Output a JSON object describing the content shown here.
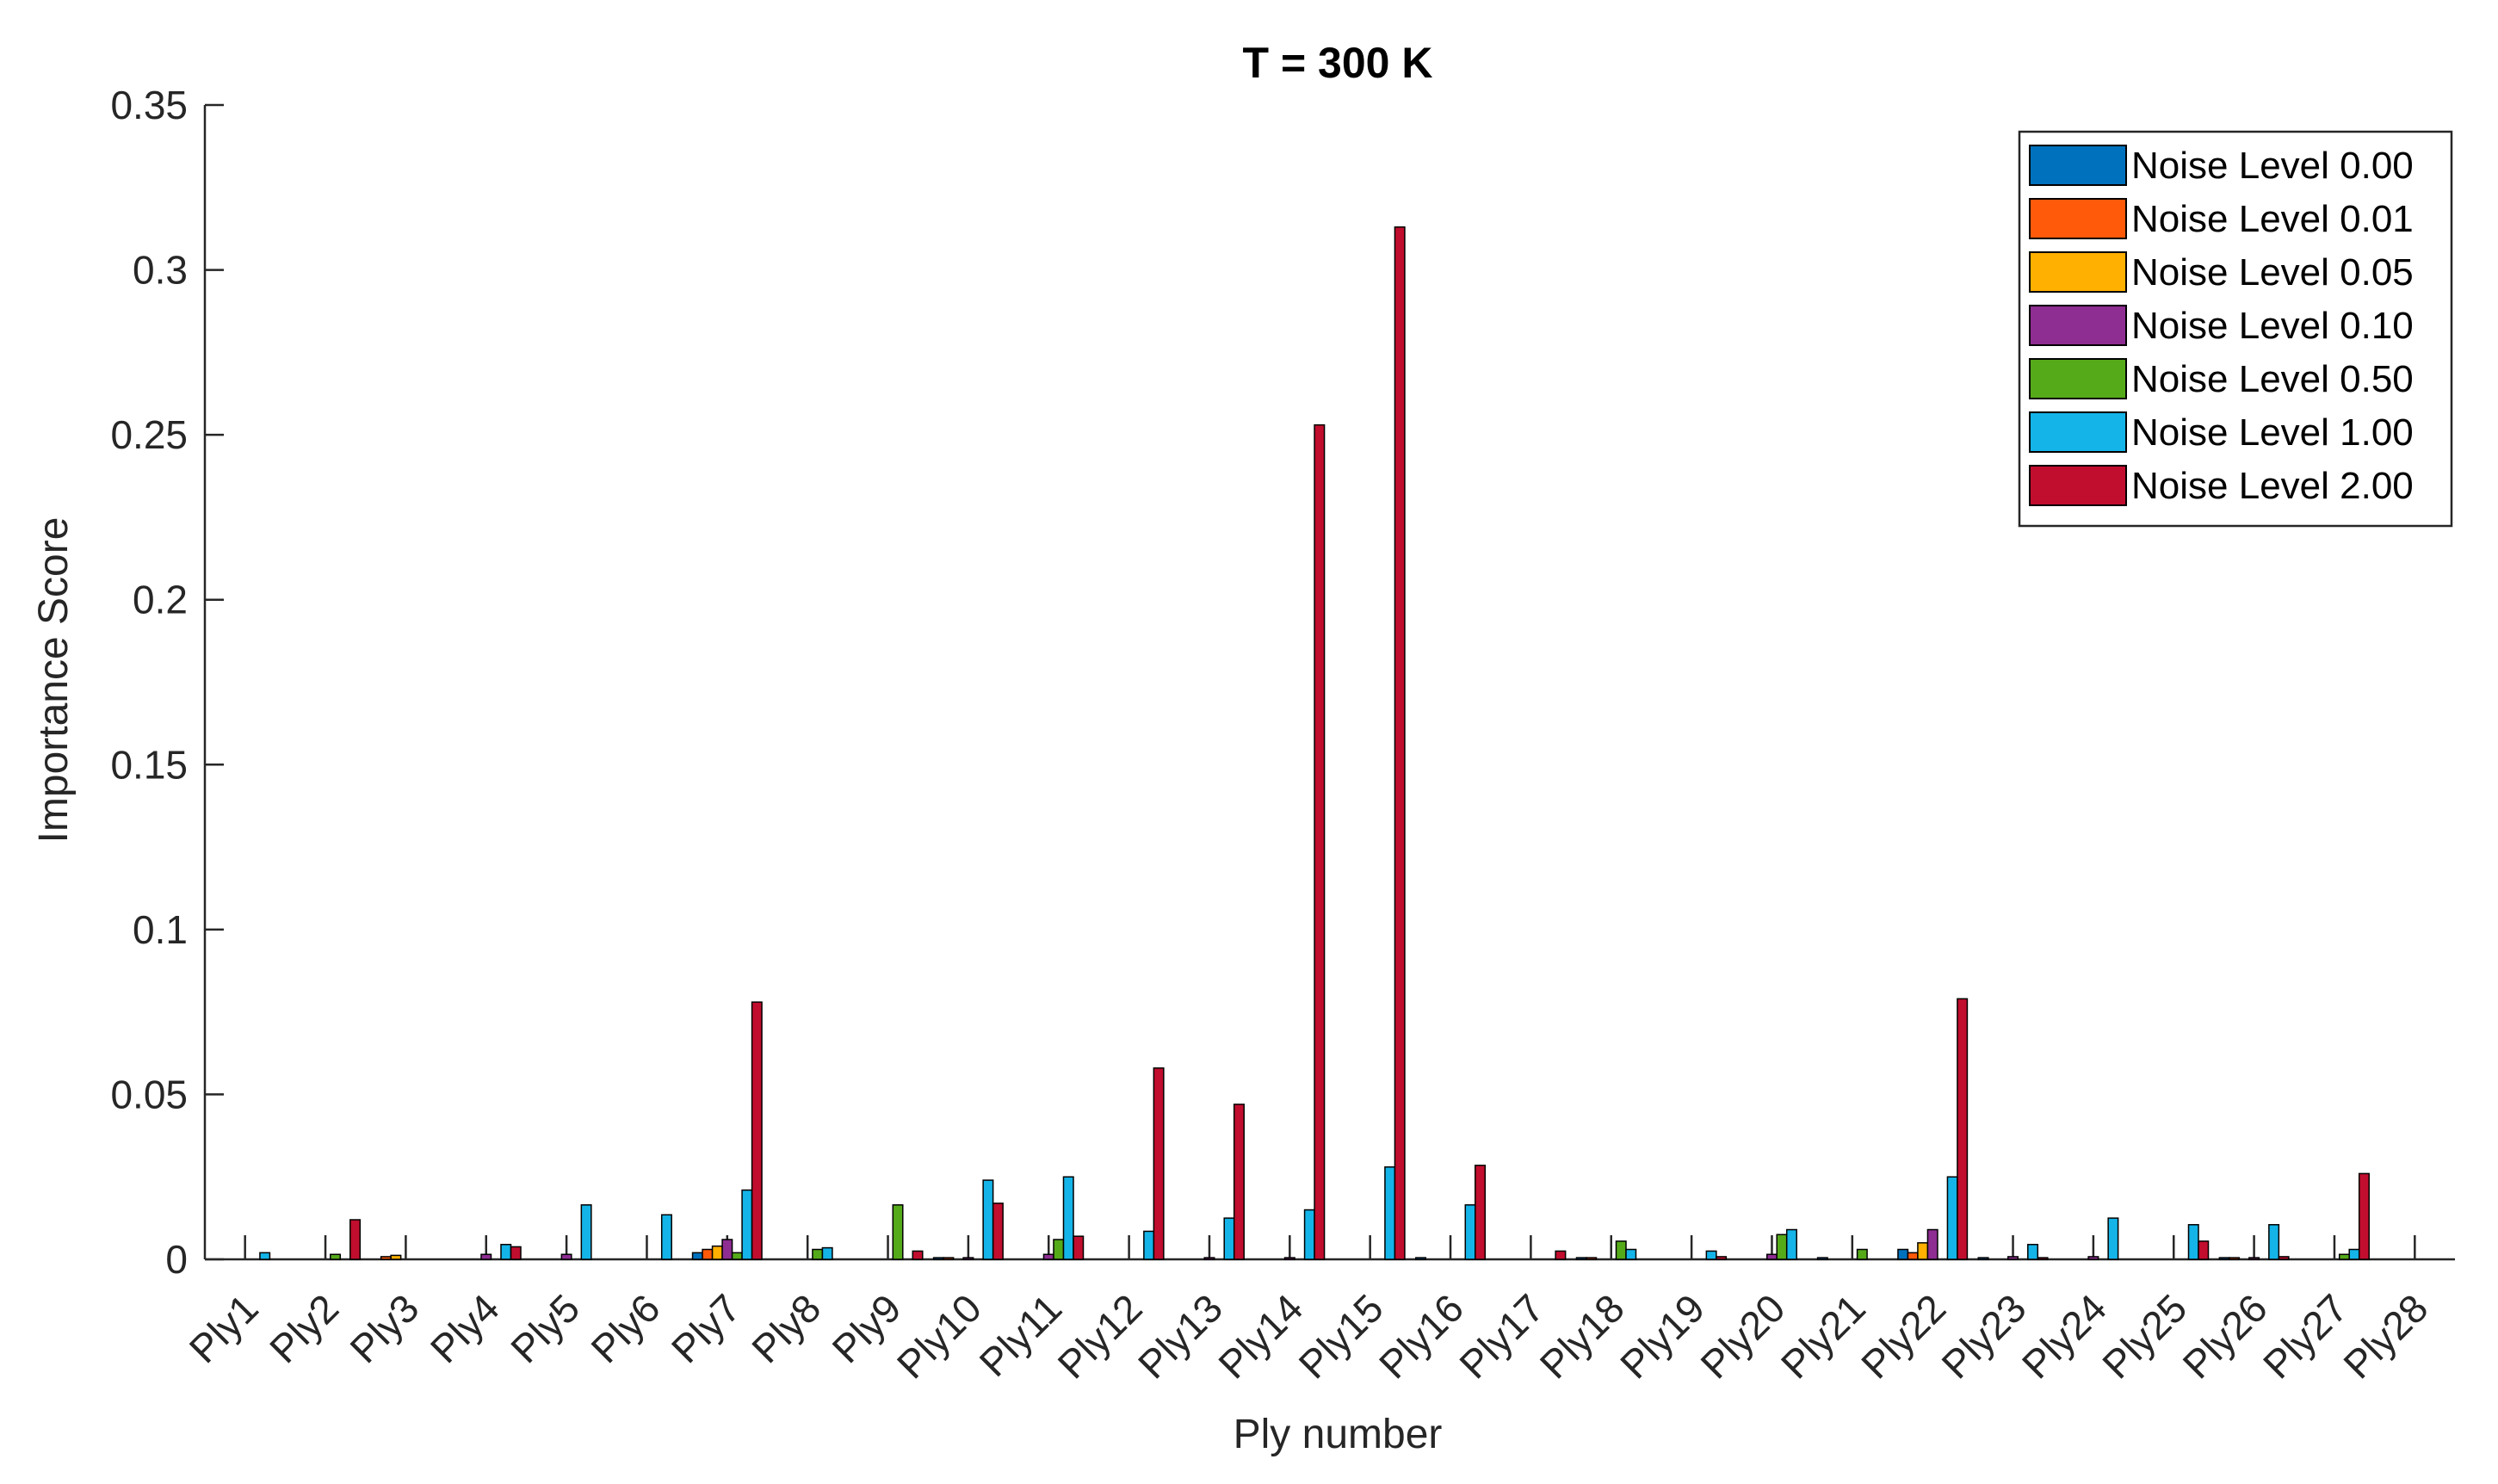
{
  "chart_data": {
    "type": "bar",
    "title": "T = 300 K",
    "xlabel": "Ply number",
    "ylabel": "Importance Score",
    "ylim": [
      0,
      0.35
    ],
    "yticks": [
      0,
      0.05,
      0.1,
      0.15,
      0.2,
      0.25,
      0.3,
      0.35
    ],
    "ytick_labels": [
      "0",
      "0.05",
      "0.1",
      "0.15",
      "0.2",
      "0.25",
      "0.3",
      "0.35"
    ],
    "legend_position": "top-right",
    "grid": false,
    "categories": [
      "Ply1",
      "Ply2",
      "Ply3",
      "Ply4",
      "Ply5",
      "Ply6",
      "Ply7",
      "Ply8",
      "Ply9",
      "Ply10",
      "Ply11",
      "Ply12",
      "Ply13",
      "Ply14",
      "Ply15",
      "Ply16",
      "Ply17",
      "Ply18",
      "Ply19",
      "Ply20",
      "Ply21",
      "Ply22",
      "Ply23",
      "Ply24",
      "Ply25",
      "Ply26",
      "Ply27",
      "Ply28"
    ],
    "series": [
      {
        "name": "Noise Level 0.00",
        "color": "#0072BD",
        "values": [
          0,
          0,
          0,
          0,
          0,
          0,
          0.002,
          0,
          0,
          0.0005,
          0,
          0,
          0,
          0,
          0,
          0.0005,
          0,
          0.0005,
          0,
          0,
          0.0005,
          0.003,
          0.0005,
          0,
          0,
          0.0005,
          0,
          0
        ]
      },
      {
        "name": "Noise Level 0.01",
        "color": "#FF5A0A",
        "values": [
          0,
          0,
          0.0008,
          0,
          0,
          0,
          0.003,
          0,
          0,
          0.0005,
          0,
          0,
          0,
          0,
          0,
          0,
          0,
          0.0005,
          0,
          0,
          0,
          0.002,
          0,
          0,
          0,
          0.0005,
          0,
          0
        ]
      },
      {
        "name": "Noise Level 0.05",
        "color": "#FFB000",
        "values": [
          0,
          0,
          0.0012,
          0,
          0,
          0,
          0.004,
          0,
          0,
          0,
          0,
          0,
          0,
          0,
          0,
          0,
          0,
          0,
          0,
          0,
          0,
          0.005,
          0,
          0,
          0,
          0,
          0,
          0
        ]
      },
      {
        "name": "Noise Level 0.10",
        "color": "#8E2D92",
        "values": [
          0,
          0,
          0,
          0.0015,
          0.0015,
          0,
          0.006,
          0,
          0,
          0.0005,
          0.0015,
          0,
          0.0005,
          0.0005,
          0,
          0,
          0,
          0,
          0,
          0.0015,
          0,
          0.009,
          0.0008,
          0.0008,
          0,
          0.0005,
          0,
          0
        ]
      },
      {
        "name": "Noise Level 0.50",
        "color": "#55AA1A",
        "values": [
          0,
          0.0015,
          0,
          0,
          0,
          0,
          0.002,
          0.003,
          0.0165,
          0,
          0.006,
          0,
          0,
          0,
          0,
          0,
          0,
          0.0055,
          0,
          0.0075,
          0.003,
          0,
          0,
          0,
          0,
          0,
          0.0015,
          0
        ]
      },
      {
        "name": "Noise Level 1.00",
        "color": "#14B4E8",
        "values": [
          0.002,
          0,
          0,
          0.0045,
          0.0165,
          0.0135,
          0.021,
          0.0035,
          0,
          0.024,
          0.025,
          0.0085,
          0.0125,
          0.015,
          0.028,
          0.0165,
          0,
          0.003,
          0.0025,
          0.009,
          0,
          0.025,
          0.0045,
          0.0125,
          0.0105,
          0.0105,
          0.003,
          0
        ]
      },
      {
        "name": "Noise Level 2.00",
        "color": "#C10D2E",
        "values": [
          0,
          0.012,
          0,
          0.0038,
          0,
          0,
          0.078,
          0,
          0.0025,
          0.017,
          0.007,
          0.058,
          0.047,
          0.253,
          0.313,
          0.0285,
          0.0025,
          0,
          0.0008,
          0,
          0,
          0.079,
          0.0005,
          0,
          0.0055,
          0.0008,
          0.026,
          0
        ]
      }
    ]
  }
}
